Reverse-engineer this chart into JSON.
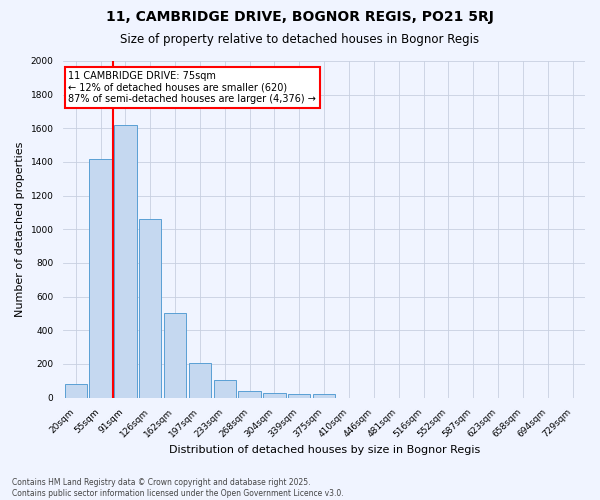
{
  "title": "11, CAMBRIDGE DRIVE, BOGNOR REGIS, PO21 5RJ",
  "subtitle": "Size of property relative to detached houses in Bognor Regis",
  "xlabel": "Distribution of detached houses by size in Bognor Regis",
  "ylabel": "Number of detached properties",
  "bar_labels": [
    "20sqm",
    "55sqm",
    "91sqm",
    "126sqm",
    "162sqm",
    "197sqm",
    "233sqm",
    "268sqm",
    "304sqm",
    "339sqm",
    "375sqm",
    "410sqm",
    "446sqm",
    "481sqm",
    "516sqm",
    "552sqm",
    "587sqm",
    "623sqm",
    "658sqm",
    "694sqm",
    "729sqm"
  ],
  "bar_values": [
    80,
    1420,
    1620,
    1060,
    500,
    205,
    105,
    40,
    30,
    20,
    20,
    0,
    0,
    0,
    0,
    0,
    0,
    0,
    0,
    0,
    0
  ],
  "bar_color": "#c5d8f0",
  "bar_edge_color": "#5a9fd4",
  "vline_color": "red",
  "vline_x": 1.5,
  "annotation_text": "11 CAMBRIDGE DRIVE: 75sqm\n← 12% of detached houses are smaller (620)\n87% of semi-detached houses are larger (4,376) →",
  "annotation_box_color": "white",
  "annotation_box_edge": "red",
  "footer_text": "Contains HM Land Registry data © Crown copyright and database right 2025.\nContains public sector information licensed under the Open Government Licence v3.0.",
  "ylim": [
    0,
    2000
  ],
  "yticks": [
    0,
    200,
    400,
    600,
    800,
    1000,
    1200,
    1400,
    1600,
    1800,
    2000
  ],
  "background_color": "#f0f4ff",
  "grid_color": "#c8d0e0",
  "title_fontsize": 10,
  "subtitle_fontsize": 8.5,
  "ylabel_fontsize": 8,
  "xlabel_fontsize": 8,
  "tick_fontsize": 6.5,
  "footer_fontsize": 5.5
}
